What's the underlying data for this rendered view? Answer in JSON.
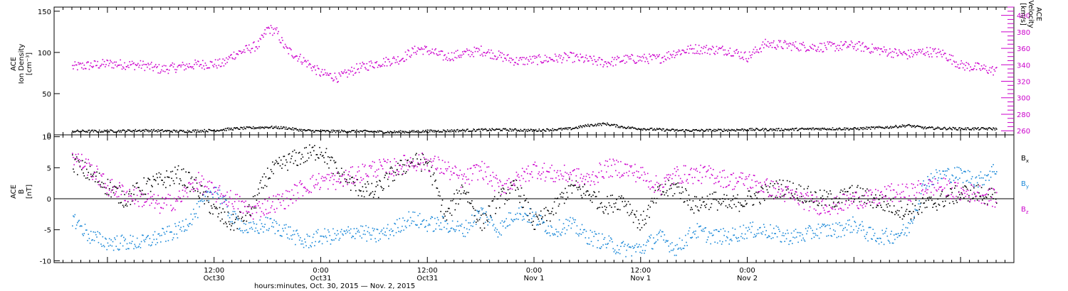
{
  "chart_data": [
    {
      "type": "scatter",
      "panel": "top",
      "left_axis": {
        "label_lines": [
          "ACE",
          "Ion Density",
          "[cm⁻³]"
        ],
        "ylim": [
          0,
          155
        ],
        "ticks": [
          0,
          50,
          100,
          150
        ],
        "color": "#000000"
      },
      "right_axis": {
        "label_lines": [
          "ACE",
          "Velocity",
          "[km/s]"
        ],
        "ylim": [
          255,
          410
        ],
        "ticks": [
          260,
          280,
          300,
          320,
          340,
          360,
          380,
          400
        ],
        "color": "#cc00cc"
      },
      "series": [
        {
          "axis": "right",
          "color": "#cc00cc",
          "noise": 6,
          "x": [
            -4,
            0,
            4,
            6,
            8,
            10,
            13,
            14,
            17,
            18,
            19,
            20,
            22,
            24,
            26,
            28,
            30,
            33,
            34,
            35,
            36,
            38,
            42,
            46,
            50,
            52,
            56,
            58,
            60,
            62,
            64,
            66,
            70,
            72,
            74,
            78,
            80,
            82,
            84,
            86,
            88,
            90,
            92,
            94,
            96,
            98,
            100
          ],
          "y": [
            338,
            342,
            340,
            335,
            338,
            341,
            342,
            352,
            365,
            385,
            380,
            360,
            346,
            330,
            325,
            336,
            342,
            348,
            355,
            360,
            358,
            350,
            358,
            345,
            348,
            350,
            343,
            347,
            348,
            348,
            356,
            360,
            358,
            350,
            366,
            363,
            362,
            363,
            364,
            360,
            356,
            353,
            357,
            354,
            340,
            337,
            333
          ]
        },
        {
          "axis": "left",
          "color": "#000000",
          "noise": 1.5,
          "x": [
            -4,
            0,
            4,
            8,
            12,
            14,
            18,
            20,
            22,
            24,
            28,
            32,
            36,
            40,
            44,
            48,
            52,
            54,
            56,
            58,
            60,
            64,
            68,
            72,
            76,
            80,
            84,
            88,
            90,
            92,
            96,
            100
          ],
          "y": [
            5,
            5,
            6,
            5,
            6,
            8,
            10,
            9,
            6,
            5,
            5,
            4,
            5,
            6,
            7,
            6,
            8,
            12,
            14,
            10,
            8,
            6,
            6,
            7,
            7,
            8,
            8,
            10,
            12,
            9,
            8,
            8
          ]
        }
      ],
      "annotations": []
    },
    {
      "type": "scatter",
      "panel": "bottom",
      "left_axis": {
        "label_lines": [
          "ACE",
          "B",
          "[nT]"
        ],
        "ylim": [
          -10.3,
          10.3
        ],
        "ticks": [
          -10,
          -5,
          0,
          5,
          10
        ],
        "color": "#000000"
      },
      "zero_line": true,
      "series": [
        {
          "name": "B",
          "subscript": "x",
          "color": "#000000",
          "noise": 1.5,
          "x": [
            -4,
            -2,
            0,
            2,
            4,
            6,
            8,
            10,
            12,
            14,
            16,
            18,
            20,
            22,
            24,
            26,
            28,
            30,
            32,
            34,
            36,
            38,
            40,
            42,
            44,
            46,
            48,
            50,
            52,
            54,
            56,
            58,
            60,
            62,
            64,
            66,
            68,
            70,
            72,
            74,
            76,
            78,
            80,
            82,
            84,
            86,
            88,
            90,
            92,
            94,
            96,
            98,
            100
          ],
          "y": [
            6,
            4,
            2,
            0,
            2,
            3,
            4,
            2,
            -2,
            -4,
            -2,
            4,
            6,
            7,
            8,
            4,
            2,
            1,
            4,
            6,
            6,
            -3,
            2,
            -4,
            0,
            2,
            -4,
            -2,
            2,
            1,
            -1,
            0,
            -4,
            1,
            2,
            -1,
            0,
            -1,
            0,
            1,
            2,
            1,
            0,
            0,
            1,
            0,
            -1,
            -2,
            -1,
            0,
            1,
            1,
            0
          ]
        },
        {
          "name": "B",
          "subscript": "y",
          "color": "#1a88d8",
          "noise": 1.3,
          "x": [
            -4,
            -2,
            0,
            2,
            4,
            6,
            8,
            10,
            12,
            14,
            16,
            18,
            20,
            22,
            24,
            26,
            28,
            30,
            32,
            34,
            36,
            38,
            40,
            42,
            44,
            46,
            48,
            50,
            52,
            54,
            56,
            58,
            60,
            62,
            64,
            66,
            68,
            70,
            72,
            74,
            76,
            78,
            80,
            82,
            84,
            86,
            88,
            90,
            92,
            94,
            96,
            98,
            100
          ],
          "y": [
            -3,
            -6,
            -7,
            -7,
            -7,
            -6,
            -5,
            -2,
            2,
            -3,
            -5,
            -4,
            -5,
            -7,
            -6,
            -6,
            -5,
            -6,
            -5,
            -3,
            -4,
            -4,
            -5,
            -2,
            -5,
            -2,
            -3,
            -5,
            -4,
            -6,
            -7,
            -8,
            -8,
            -6,
            -8,
            -5,
            -6,
            -6,
            -5,
            -5,
            -6,
            -6,
            -5,
            -5,
            -4,
            -6,
            -6,
            -5,
            3,
            4,
            4,
            3,
            5
          ]
        },
        {
          "name": "B",
          "subscript": "z",
          "color": "#cc00cc",
          "noise": 1.5,
          "x": [
            -4,
            -2,
            0,
            2,
            4,
            6,
            8,
            10,
            12,
            14,
            16,
            18,
            20,
            22,
            24,
            26,
            28,
            30,
            32,
            34,
            36,
            38,
            40,
            42,
            44,
            46,
            48,
            50,
            52,
            54,
            56,
            58,
            60,
            62,
            64,
            66,
            68,
            70,
            72,
            74,
            76,
            78,
            80,
            82,
            84,
            86,
            88,
            90,
            92,
            94,
            96,
            98,
            100
          ],
          "y": [
            7,
            5,
            2,
            1,
            0,
            -1,
            0,
            3,
            1,
            0,
            -2,
            -1,
            0,
            2,
            3,
            3,
            4,
            5,
            5,
            6,
            6,
            5,
            3,
            5,
            2,
            3,
            5,
            4,
            4,
            3,
            5,
            5,
            4,
            2,
            4,
            4,
            4,
            3,
            3,
            2,
            1,
            0,
            -1,
            -1,
            0,
            0,
            1,
            1,
            2,
            2,
            1,
            1,
            0
          ]
        }
      ],
      "legend": {
        "placement": "right",
        "entries": [
          "Bx",
          "By",
          "Bz"
        ]
      }
    }
  ],
  "x_axis": {
    "unit": "hours",
    "range": [
      -6,
      102
    ],
    "ticks": [
      {
        "x": 12,
        "line1": "12:00",
        "line2": "Oct30"
      },
      {
        "x": 24,
        "line1": "0:00",
        "line2": "Oct31"
      },
      {
        "x": 36,
        "line1": "12:00",
        "line2": "Oct31"
      },
      {
        "x": 48,
        "line1": "0:00",
        "line2": "Nov 1"
      },
      {
        "x": 60,
        "line1": "12:00",
        "line2": "Nov 1"
      },
      {
        "x": 72,
        "line1": "0:00",
        "line2": "Nov 2"
      }
    ],
    "xlabel": "hours:minutes, Oct. 30, 2015 — Nov. 2, 2015"
  }
}
